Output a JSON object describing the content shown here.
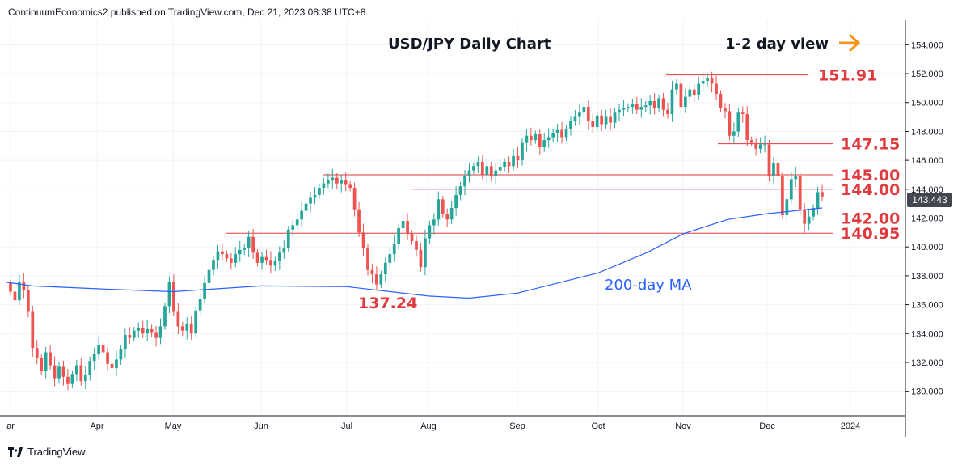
{
  "header": {
    "text": "ContinuumEconomics2 published on TradingView.com, Dec 21, 2023 08:38 UTC+8"
  },
  "footer": {
    "brand": "TradingView"
  },
  "last_price_label": "143.443",
  "colors": {
    "up": "#26a69a",
    "down": "#ef5350",
    "level": "#e03a3e",
    "ma": "#2962ff",
    "arrow": "#f7931a"
  },
  "chart_data": {
    "type": "candlestick",
    "title": "USD/JPY Daily Chart",
    "annotation": "1-2 day view",
    "ma_label": "200-day MA",
    "low_label": "137.24",
    "y_ticks": [
      "154.000",
      "152.000",
      "150.000",
      "148.000",
      "146.000",
      "144.000",
      "142.000",
      "140.000",
      "138.000",
      "136.000",
      "134.000",
      "132.000",
      "130.000"
    ],
    "ylim": [
      128.3,
      155.7
    ],
    "x_ticks": [
      "ar",
      "Apr",
      "May",
      "Jun",
      "Jul",
      "Aug",
      "Sep",
      "Oct",
      "Nov",
      "Dec",
      "2024"
    ],
    "levels": [
      {
        "value": 151.91,
        "label": "151.91"
      },
      {
        "value": 147.15,
        "label": "147.15"
      },
      {
        "value": 145.0,
        "label": "145.00"
      },
      {
        "value": 144.0,
        "label": "144.00"
      },
      {
        "value": 142.0,
        "label": "142.00"
      },
      {
        "value": 140.95,
        "label": "140.95"
      }
    ],
    "closes": [
      136.9,
      136.3,
      137.6,
      137.0,
      135.5,
      133.0,
      132.3,
      131.4,
      132.7,
      131.8,
      130.9,
      131.7,
      131.0,
      130.5,
      131.2,
      131.8,
      130.7,
      131.1,
      132.1,
      132.6,
      133.2,
      132.7,
      131.9,
      131.6,
      132.2,
      132.9,
      133.9,
      133.7,
      134.2,
      134.4,
      134.0,
      134.3,
      134.1,
      133.7,
      134.5,
      135.9,
      137.6,
      135.5,
      134.5,
      134.2,
      134.7,
      134.0,
      135.6,
      136.4,
      137.5,
      138.4,
      139.1,
      139.7,
      139.5,
      139.2,
      138.9,
      139.5,
      139.8,
      139.9,
      140.7,
      139.6,
      138.9,
      139.3,
      139.1,
      138.7,
      139.0,
      139.6,
      139.9,
      141.2,
      141.5,
      141.9,
      142.5,
      143.0,
      143.4,
      143.6,
      144.1,
      144.4,
      144.6,
      144.8,
      144.4,
      144.6,
      144.3,
      144.1,
      142.6,
      141.0,
      139.9,
      138.4,
      138.1,
      137.4,
      138.1,
      138.9,
      139.5,
      140.2,
      141.3,
      141.8,
      140.9,
      140.4,
      139.8,
      138.6,
      140.6,
      141.5,
      141.9,
      143.3,
      142.3,
      141.9,
      142.7,
      143.6,
      144.2,
      144.9,
      145.3,
      145.6,
      145.9,
      145.0,
      145.6,
      144.9,
      145.3,
      145.5,
      145.9,
      145.6,
      146.3,
      146.0,
      147.2,
      147.7,
      147.4,
      147.8,
      146.9,
      147.4,
      147.6,
      147.9,
      148.1,
      147.6,
      148.2,
      148.7,
      149.0,
      149.3,
      149.7,
      148.7,
      148.3,
      149.1,
      148.5,
      149.0,
      148.6,
      149.3,
      149.5,
      149.6,
      149.7,
      149.9,
      149.5,
      149.7,
      149.8,
      150.1,
      149.6,
      150.3,
      149.5,
      149.2,
      150.9,
      151.3,
      149.7,
      150.4,
      150.9,
      150.5,
      151.3,
      151.5,
      151.7,
      151.3,
      150.6,
      149.6,
      149.4,
      147.7,
      148.0,
      149.3,
      149.2,
      147.4,
      147.2,
      146.8,
      147.1,
      147.1,
      144.9,
      145.8,
      144.9,
      142.2,
      143.3,
      144.7,
      144.9,
      142.6,
      141.6,
      142.1,
      142.7,
      143.8,
      143.5
    ]
  }
}
